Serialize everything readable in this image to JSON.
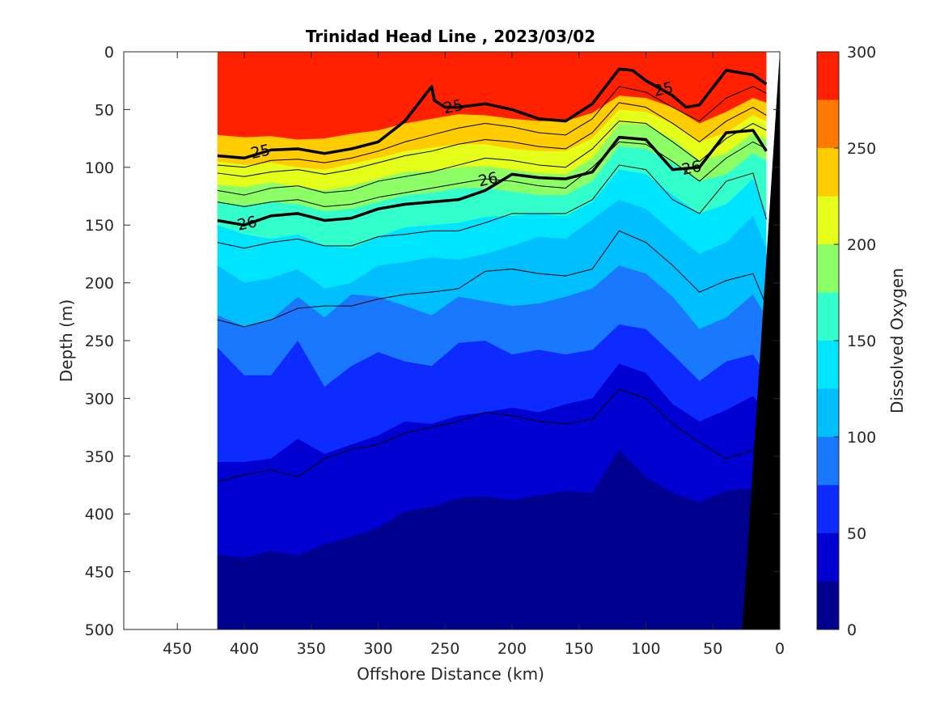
{
  "chart_data": {
    "type": "contour",
    "title": "Trinidad Head Line , 2023/03/02",
    "xlabel": "Offshore Distance (km)",
    "ylabel": "Depth (m)",
    "colorbar_label": "Dissolved Oxygen",
    "xlim": [
      490,
      0
    ],
    "ylim": [
      0,
      500
    ],
    "x_reversed": true,
    "y_reversed": true,
    "x_ticks": [
      450,
      400,
      350,
      300,
      250,
      200,
      150,
      100,
      50,
      0
    ],
    "y_ticks": [
      0,
      50,
      100,
      150,
      200,
      250,
      300,
      350,
      400,
      450,
      500
    ],
    "colorbar_ticks": [
      0,
      50,
      100,
      150,
      200,
      250,
      300
    ],
    "colorbar_range": [
      0,
      300
    ],
    "colorbar_levels": [
      0,
      25,
      50,
      75,
      100,
      125,
      150,
      175,
      200,
      225,
      250,
      275,
      300
    ],
    "colorbar_colors": [
      "#00008f",
      "#0000d0",
      "#0d2bff",
      "#1a78ff",
      "#00bfff",
      "#00e5ff",
      "#33ffcc",
      "#8cff66",
      "#e6ff1a",
      "#ffcc00",
      "#ff7a00",
      "#ff2000",
      "#cc0000"
    ],
    "data_xrange": [
      420,
      10
    ],
    "oxygen_isolines": [
      {
        "level": 250,
        "x": [
          420,
          400,
          380,
          360,
          340,
          320,
          300,
          280,
          260,
          240,
          220,
          200,
          180,
          160,
          140,
          120,
          100,
          80,
          60,
          40,
          20,
          10
        ],
        "depth": [
          72,
          74,
          73,
          76,
          75,
          71,
          68,
          62,
          58,
          54,
          55,
          58,
          60,
          60,
          53,
          38,
          40,
          48,
          62,
          52,
          40,
          44
        ]
      },
      {
        "level": 225,
        "x": [
          420,
          400,
          380,
          360,
          340,
          320,
          300,
          280,
          260,
          240,
          220,
          200,
          180,
          160,
          140,
          120,
          100,
          80,
          60,
          40,
          20,
          10
        ],
        "depth": [
          95,
          98,
          96,
          100,
          102,
          97,
          92,
          86,
          83,
          80,
          80,
          84,
          86,
          86,
          75,
          50,
          52,
          62,
          78,
          70,
          55,
          60
        ]
      },
      {
        "level": 200,
        "x": [
          420,
          400,
          380,
          360,
          340,
          320,
          300,
          280,
          260,
          240,
          220,
          200,
          180,
          160,
          140,
          120,
          100,
          80,
          60,
          40,
          20,
          10
        ],
        "depth": [
          115,
          117,
          113,
          117,
          120,
          116,
          110,
          104,
          103,
          100,
          99,
          102,
          105,
          106,
          92,
          62,
          63,
          76,
          94,
          88,
          70,
          76
        ]
      },
      {
        "level": 175,
        "x": [
          420,
          400,
          380,
          360,
          340,
          320,
          300,
          280,
          260,
          240,
          220,
          200,
          180,
          160,
          140,
          120,
          100,
          80,
          60,
          40,
          20,
          10
        ],
        "depth": [
          130,
          133,
          130,
          132,
          138,
          136,
          130,
          124,
          122,
          118,
          118,
          121,
          124,
          124,
          112,
          82,
          84,
          96,
          112,
          106,
          88,
          94
        ]
      },
      {
        "level": 150,
        "x": [
          420,
          400,
          380,
          360,
          340,
          320,
          300,
          280,
          260,
          240,
          220,
          200,
          180,
          160,
          140,
          120,
          100,
          80,
          60,
          40,
          20,
          10
        ],
        "depth": [
          150,
          158,
          162,
          158,
          168,
          170,
          160,
          152,
          150,
          148,
          143,
          142,
          140,
          142,
          130,
          102,
          106,
          124,
          140,
          132,
          110,
          140
        ]
      },
      {
        "level": 125,
        "x": [
          420,
          400,
          380,
          360,
          340,
          320,
          300,
          280,
          260,
          240,
          220,
          200,
          180,
          160,
          140,
          120,
          100,
          80,
          60,
          40,
          20,
          10
        ],
        "depth": [
          185,
          200,
          196,
          188,
          205,
          200,
          185,
          182,
          178,
          180,
          175,
          168,
          160,
          162,
          145,
          128,
          136,
          156,
          175,
          165,
          142,
          170
        ]
      },
      {
        "level": 100,
        "x": [
          420,
          400,
          380,
          360,
          340,
          320,
          300,
          280,
          260,
          240,
          220,
          200,
          180,
          160,
          140,
          120,
          100,
          80,
          60,
          40,
          20,
          10
        ],
        "depth": [
          228,
          238,
          232,
          212,
          230,
          210,
          212,
          220,
          228,
          212,
          216,
          220,
          218,
          212,
          205,
          185,
          192,
          212,
          240,
          230,
          210,
          230
        ]
      },
      {
        "level": 75,
        "x": [
          420,
          400,
          380,
          360,
          340,
          320,
          300,
          280,
          260,
          240,
          220,
          200,
          180,
          160,
          140,
          120,
          100,
          80,
          60,
          40,
          20,
          10
        ],
        "depth": [
          256,
          280,
          280,
          250,
          290,
          272,
          260,
          268,
          272,
          252,
          250,
          262,
          258,
          262,
          258,
          236,
          240,
          262,
          285,
          268,
          262,
          280
        ]
      },
      {
        "level": 50,
        "x": [
          420,
          400,
          380,
          360,
          340,
          320,
          300,
          280,
          260,
          240,
          220,
          200,
          180,
          160,
          140,
          120,
          100,
          80,
          60,
          40,
          20,
          10
        ],
        "depth": [
          355,
          355,
          352,
          335,
          348,
          340,
          332,
          320,
          322,
          315,
          312,
          308,
          312,
          305,
          300,
          270,
          278,
          305,
          320,
          310,
          298,
          312
        ]
      },
      {
        "level": 25,
        "x": [
          420,
          400,
          380,
          360,
          340,
          320,
          300,
          280,
          260,
          240,
          220,
          200,
          180,
          160,
          140,
          120,
          100,
          80,
          60,
          40,
          20,
          10
        ],
        "depth": [
          435,
          438,
          432,
          436,
          426,
          420,
          412,
          398,
          394,
          386,
          385,
          388,
          384,
          380,
          382,
          344,
          368,
          382,
          390,
          380,
          378,
          380
        ]
      }
    ],
    "density_isolines": [
      {
        "value": 25,
        "x": [
          420,
          400,
          380,
          360,
          340,
          320,
          300,
          280,
          260,
          258,
          250,
          240,
          220,
          200,
          180,
          160,
          140,
          120,
          110,
          100,
          80,
          70,
          60,
          40,
          20,
          10
        ],
        "depth": [
          90,
          92,
          85,
          84,
          88,
          84,
          78,
          60,
          30,
          42,
          48,
          48,
          45,
          50,
          58,
          60,
          45,
          15,
          16,
          25,
          38,
          48,
          46,
          16,
          20,
          28
        ]
      },
      {
        "value": 25.2,
        "x": [
          420,
          400,
          380,
          360,
          340,
          320,
          300,
          280,
          260,
          240,
          220,
          200,
          180,
          160,
          140,
          120,
          100,
          80,
          60,
          40,
          20,
          10
        ],
        "depth": [
          98,
          100,
          94,
          93,
          96,
          92,
          86,
          78,
          72,
          66,
          62,
          65,
          70,
          72,
          58,
          30,
          35,
          48,
          60,
          40,
          30,
          36
        ]
      },
      {
        "value": 25.4,
        "x": [
          420,
          400,
          380,
          360,
          340,
          320,
          300,
          280,
          260,
          240,
          220,
          200,
          180,
          160,
          140,
          120,
          100,
          80,
          60,
          40,
          20,
          10
        ],
        "depth": [
          105,
          108,
          104,
          102,
          106,
          102,
          96,
          90,
          86,
          80,
          76,
          78,
          82,
          84,
          70,
          44,
          48,
          62,
          78,
          60,
          48,
          55
        ]
      },
      {
        "value": 25.6,
        "x": [
          420,
          400,
          380,
          360,
          340,
          320,
          300,
          280,
          260,
          240,
          220,
          200,
          180,
          160,
          140,
          120,
          100,
          80,
          60,
          40,
          20,
          10
        ],
        "depth": [
          120,
          124,
          118,
          116,
          122,
          120,
          112,
          108,
          104,
          98,
          92,
          94,
          98,
          100,
          84,
          60,
          62,
          78,
          95,
          75,
          62,
          68
        ]
      },
      {
        "value": 25.8,
        "x": [
          420,
          400,
          380,
          360,
          340,
          320,
          300,
          280,
          260,
          240,
          220,
          200,
          180,
          160,
          140,
          120,
          100,
          80,
          60,
          40,
          20,
          10
        ],
        "depth": [
          130,
          134,
          130,
          128,
          134,
          132,
          126,
          122,
          118,
          114,
          110,
          112,
          116,
          118,
          100,
          78,
          80,
          95,
          112,
          92,
          78,
          84
        ]
      },
      {
        "value": 26,
        "x": [
          420,
          400,
          380,
          360,
          340,
          320,
          300,
          280,
          260,
          240,
          220,
          200,
          180,
          160,
          140,
          120,
          100,
          80,
          60,
          40,
          20,
          10
        ],
        "depth": [
          146,
          150,
          142,
          140,
          146,
          144,
          136,
          132,
          130,
          128,
          120,
          106,
          109,
          110,
          104,
          74,
          76,
          102,
          100,
          70,
          68,
          86
        ]
      },
      {
        "value": 26.2,
        "x": [
          420,
          400,
          380,
          360,
          340,
          320,
          300,
          280,
          260,
          240,
          220,
          200,
          180,
          160,
          140,
          120,
          100,
          80,
          60,
          40,
          20,
          10
        ],
        "depth": [
          165,
          170,
          165,
          162,
          168,
          168,
          160,
          158,
          155,
          155,
          148,
          140,
          140,
          140,
          128,
          98,
          102,
          128,
          140,
          112,
          105,
          145
        ]
      },
      {
        "value": 26.4,
        "x": [
          420,
          400,
          380,
          360,
          340,
          320,
          300,
          280,
          260,
          240,
          220,
          200,
          180,
          160,
          140,
          120,
          100,
          80,
          60,
          40,
          20,
          10
        ],
        "depth": [
          232,
          238,
          232,
          222,
          220,
          220,
          214,
          210,
          208,
          205,
          190,
          188,
          192,
          194,
          188,
          155,
          165,
          185,
          208,
          198,
          192,
          220
        ]
      },
      {
        "value": 26.6,
        "x": [
          420,
          400,
          380,
          360,
          340,
          320,
          300,
          280,
          260,
          240,
          220,
          200,
          180,
          160,
          140,
          120,
          100,
          80,
          60,
          40,
          20,
          10
        ],
        "depth": [
          372,
          366,
          362,
          368,
          352,
          344,
          340,
          330,
          325,
          320,
          312,
          315,
          320,
          322,
          318,
          292,
          300,
          322,
          338,
          352,
          345,
          330
        ]
      }
    ],
    "contour_labels": [
      {
        "text": "25",
        "x": 388,
        "depth": 86
      },
      {
        "text": "25",
        "x": 244,
        "depth": 47
      },
      {
        "text": "25",
        "x": 87,
        "depth": 32
      },
      {
        "text": "26",
        "x": 218,
        "depth": 110
      },
      {
        "text": "26",
        "x": 66,
        "depth": 100
      },
      {
        "text": "26",
        "x": 398,
        "depth": 148
      }
    ],
    "bathymetry": {
      "x": [
        0,
        28,
        0
      ],
      "depth": [
        0,
        500,
        500
      ]
    }
  }
}
